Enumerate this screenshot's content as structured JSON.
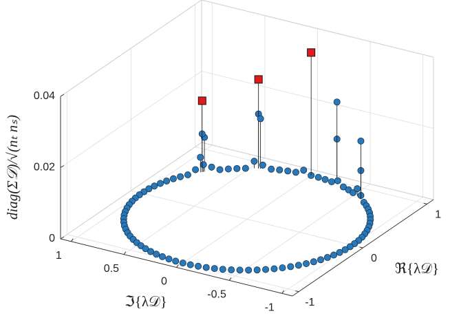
{
  "chart_data": {
    "type": "stem3",
    "xlabel": "ℜ{λ𝒟}",
    "ylabel": "ℑ{λ𝒟}",
    "zlabel": "diag(Σ𝒟)/√(nₜ nₛ)",
    "xlim": [
      -1.1,
      1.1
    ],
    "ylim": [
      -1.1,
      1.1
    ],
    "zlim": [
      0,
      0.04
    ],
    "xticks": [
      -1,
      0,
      1
    ],
    "yticks": [
      -1,
      -0.5,
      0,
      0.5,
      1
    ],
    "zticks": [
      0,
      0.02,
      0.04
    ],
    "grid": true,
    "series": [
      {
        "color": "#2a78b8",
        "marker": "circle",
        "x": [
          1,
          0.998,
          0.99,
          0.978,
          0.961,
          0.94,
          0.914,
          0.883,
          0.848,
          0.809,
          0.766,
          0.719,
          0.669,
          0.616,
          0.559,
          0.5,
          0.438,
          0.375,
          0.309,
          0.242,
          0.174,
          0.105,
          0.035,
          -0.035,
          -0.105,
          -0.174,
          -0.242,
          -0.309,
          -0.375,
          -0.438,
          -0.5,
          -0.559,
          -0.616,
          -0.669,
          -0.719,
          -0.766,
          -0.809,
          -0.848,
          -0.883,
          -0.914,
          -0.94,
          -0.961,
          -0.978,
          -0.99,
          -0.998,
          -1,
          -0.998,
          -0.99,
          -0.978,
          -0.961,
          -0.94,
          -0.914,
          -0.883,
          -0.848,
          -0.809,
          -0.766,
          -0.719,
          -0.669,
          -0.616,
          -0.559,
          -0.5,
          -0.438,
          -0.375,
          -0.309,
          -0.242,
          -0.174,
          -0.105,
          -0.035,
          0.035,
          0.105,
          0.174,
          0.242,
          0.309,
          0.375,
          0.438,
          0.5,
          0.559,
          0.616,
          0.669,
          0.719,
          0.766,
          0.809,
          0.848,
          0.883,
          0.914,
          0.94,
          0.961,
          0.978,
          0.99,
          0.998
        ],
        "y": [
          0,
          0.07,
          0.139,
          0.208,
          0.276,
          0.342,
          0.407,
          0.469,
          0.53,
          0.588,
          0.643,
          0.695,
          0.743,
          0.788,
          0.829,
          0.866,
          0.899,
          0.927,
          0.951,
          0.97,
          0.985,
          0.995,
          0.999,
          0.999,
          0.995,
          0.985,
          0.97,
          0.951,
          0.927,
          0.899,
          0.866,
          0.829,
          0.788,
          0.743,
          0.695,
          0.643,
          0.588,
          0.53,
          0.469,
          0.407,
          0.342,
          0.276,
          0.208,
          0.139,
          0.07,
          0,
          -0.07,
          -0.139,
          -0.208,
          -0.276,
          -0.342,
          -0.407,
          -0.469,
          -0.53,
          -0.588,
          -0.643,
          -0.695,
          -0.743,
          -0.788,
          -0.829,
          -0.866,
          -0.899,
          -0.927,
          -0.951,
          -0.97,
          -0.985,
          -0.995,
          -0.999,
          -0.999,
          -0.995,
          -0.985,
          -0.97,
          -0.951,
          -0.927,
          -0.899,
          -0.866,
          -0.829,
          -0.788,
          -0.743,
          -0.695,
          -0.643,
          -0.588,
          -0.53,
          -0.469,
          -0.407,
          -0.342,
          -0.276,
          -0.208,
          -0.139,
          -0.07
        ],
        "values": [
          0,
          0.001,
          0,
          0,
          0,
          0,
          0.001,
          0.002,
          0,
          0,
          0,
          0,
          0.001,
          0.002,
          0.001,
          0,
          0,
          0,
          0,
          0,
          0,
          0,
          0,
          0,
          0,
          0,
          0,
          0,
          0,
          0,
          0,
          0,
          0,
          0,
          0,
          0,
          0,
          0,
          0,
          0,
          0,
          0,
          0,
          0,
          0,
          0,
          0,
          0,
          0,
          0,
          0,
          0,
          0,
          0,
          0,
          0,
          0,
          0,
          0,
          0,
          0,
          0,
          0,
          0,
          0,
          0,
          0,
          0,
          0,
          0,
          0,
          0,
          0,
          0,
          0,
          0,
          0,
          0,
          0,
          0,
          0,
          0.001,
          0.002,
          0,
          0,
          0,
          0.001,
          0,
          0,
          0
        ]
      },
      {
        "color": "#2a78b8",
        "marker": "circle",
        "x": [
          0.607,
          0.623,
          0.595,
          0.899,
          0.906,
          0.964,
          0.964,
          0.809,
          0.809
        ],
        "y": [
          0.795,
          0.783,
          0.804,
          0.438,
          0.423,
          -0.267,
          -0.267,
          -0.588,
          -0.588
        ],
        "values": [
          0.0107,
          0.0096,
          0.0042,
          0.0153,
          0.014,
          0.023,
          0.0126,
          0.0163,
          0.008
        ]
      },
      {
        "color": "#e31a1c",
        "marker": "square",
        "x": [
          0.607,
          0.899,
          1
        ],
        "y": [
          0.795,
          0.438,
          0
        ],
        "values": [
          0.02,
          0.025,
          0.0345
        ]
      }
    ]
  }
}
